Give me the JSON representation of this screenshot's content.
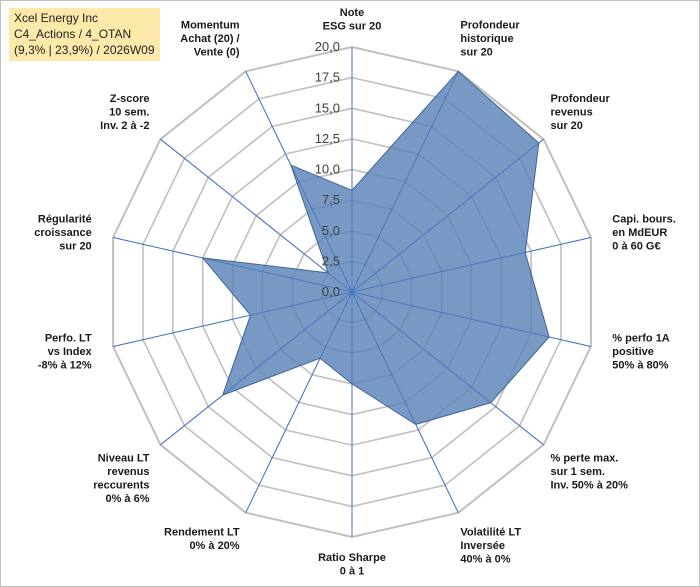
{
  "header": {
    "company": "Xcel Energy Inc",
    "portfolio": "C4_Actions / 4_OTAN",
    "summary": "(9,3% | 23,9%) / 2026W09"
  },
  "chart_data": {
    "type": "radar",
    "title": "Xcel Energy Inc",
    "rlim": [
      0,
      20
    ],
    "ticks": [
      "0,0",
      "2,5",
      "5,0",
      "7,5",
      "10,0",
      "12,5",
      "15,0",
      "17,5",
      "20,0"
    ],
    "tick_values": [
      0,
      2.5,
      5,
      7.5,
      10,
      12.5,
      15,
      17.5,
      20
    ],
    "grid": true,
    "colors": {
      "fill": "#5b82b8",
      "fill_opacity": 0.82,
      "edge": "#3f6497",
      "grid": "#bfbfbf",
      "spoke": "#4472c4"
    },
    "axes": [
      {
        "label": [
          "Note",
          "ESG sur 20"
        ],
        "value": 8.3
      },
      {
        "label": [
          "Profondeur",
          "historique",
          "sur 20"
        ],
        "value": 20
      },
      {
        "label": [
          "Profondeur",
          "revenus",
          "sur 20"
        ],
        "value": 19.5
      },
      {
        "label": [
          "Capi. bours.",
          "en MdEUR",
          "0 à 60 G€"
        ],
        "value": 14.5
      },
      {
        "label": [
          "% perfo 1A",
          "positive",
          "50% à 80%"
        ],
        "value": 16.5
      },
      {
        "label": [
          "% perte max.",
          "sur 1 sem.",
          "Inv. 50% à 20%"
        ],
        "value": 14.5
      },
      {
        "label": [
          "Volatilité LT",
          "Inversée",
          "40% à 0%"
        ],
        "value": 12.0
      },
      {
        "label": [
          "Ratio Sharpe",
          "0 à 1"
        ],
        "value": 7.5
      },
      {
        "label": [
          "Rendement LT",
          "0% à 20%"
        ],
        "value": 6.0
      },
      {
        "label": [
          "Niveau LT",
          "revenus",
          "reccurents",
          "0% à 6%"
        ],
        "value": 13.5
      },
      {
        "label": [
          "Perfo. LT",
          "vs Index",
          "-8% à 12%"
        ],
        "value": 8.5
      },
      {
        "label": [
          "Régularité",
          "croissance",
          "sur 20"
        ],
        "value": 12.5
      },
      {
        "label": [
          "Z-score",
          "10 sem.",
          "Inv. 2 à -2"
        ],
        "value": 2.5
      },
      {
        "label": [
          "Momentum",
          "Achat (20) /",
          "Vente (0)"
        ],
        "value": 11.5
      }
    ]
  }
}
